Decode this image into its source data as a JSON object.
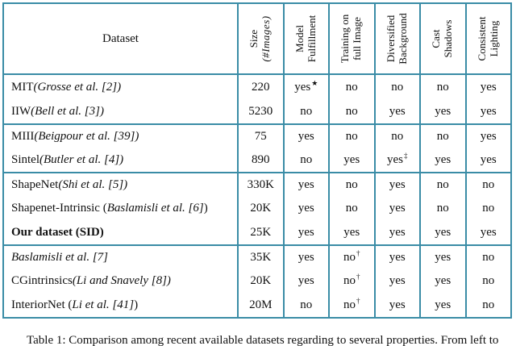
{
  "colors": {
    "border": "#3a8ca6",
    "text": "#111111"
  },
  "caption": "Table 1: Comparison among recent available datasets regarding to several properties. From left to",
  "table": {
    "dataset_header": "Dataset",
    "columns": [
      {
        "line1": "Size",
        "line2": "(#Images)"
      },
      {
        "line1": "Model",
        "line2": "Fulfillment"
      },
      {
        "line1": "Training on",
        "line2": "full Image"
      },
      {
        "line1": "Diversified",
        "line2": "Background"
      },
      {
        "line1": "Cast",
        "line2": "Shadows"
      },
      {
        "line1": "Consistent",
        "line2": "Lighting"
      }
    ],
    "footnote_symbols": {
      "star": "★",
      "dagger": "†",
      "double_dagger": "‡"
    },
    "rows": [
      {
        "pre": "MIT ",
        "it": "(Grosse et al. [2])",
        "post": "",
        "size": "220",
        "model": "yes",
        "model_sup": "★",
        "training": "no",
        "background": "no",
        "shadows": "no",
        "lighting": "yes"
      },
      {
        "pre": "IIW ",
        "it": "(Bell et al. [3])",
        "post": "",
        "size": "5230",
        "model": "no",
        "training": "no",
        "background": "yes",
        "shadows": "yes",
        "lighting": "yes"
      },
      {
        "pre": "MIII ",
        "it": "(Beigpour et al. [39])",
        "post": "",
        "size": "75",
        "model": "yes",
        "training": "no",
        "background": "no",
        "shadows": "no",
        "lighting": "yes"
      },
      {
        "pre": "Sintel ",
        "it": "(Butler et al. [4])",
        "post": "",
        "size": "890",
        "model": "no",
        "training": "yes",
        "background": "yes",
        "background_sup": "‡",
        "shadows": "yes",
        "lighting": "yes"
      },
      {
        "pre": "ShapeNet ",
        "it": "(Shi et al. [5])",
        "post": "",
        "size": "330K",
        "model": "yes",
        "training": "no",
        "background": "yes",
        "shadows": "no",
        "lighting": "no"
      },
      {
        "pre": "Shapenet-Intrinsic (",
        "it": "Baslamisli et al. [6]",
        "post": ")",
        "size": "20K",
        "model": "yes",
        "training": "no",
        "background": "yes",
        "shadows": "no",
        "lighting": "no"
      },
      {
        "pre": "Our dataset (SID)",
        "it": "",
        "post": "",
        "size": "25K",
        "model": "yes",
        "training": "yes",
        "background": "yes",
        "shadows": "yes",
        "lighting": "yes"
      },
      {
        "pre": "",
        "it": "Baslamisli et al. [7]",
        "post": "",
        "size": "35K",
        "model": "yes",
        "training": "no",
        "training_sup": "†",
        "background": "yes",
        "shadows": "yes",
        "lighting": "no"
      },
      {
        "pre": "CGintrinsics ",
        "it": "(Li and Snavely [8])",
        "post": "",
        "size": "20K",
        "model": "yes",
        "training": "no",
        "training_sup": "†",
        "background": "yes",
        "shadows": "yes",
        "lighting": "no"
      },
      {
        "pre": "InteriorNet (",
        "it": "Li et al. [41]",
        "post": ")",
        "size": "20M",
        "model": "no",
        "training": "no",
        "training_sup": "†",
        "background": "yes",
        "shadows": "yes",
        "lighting": "no"
      }
    ]
  }
}
